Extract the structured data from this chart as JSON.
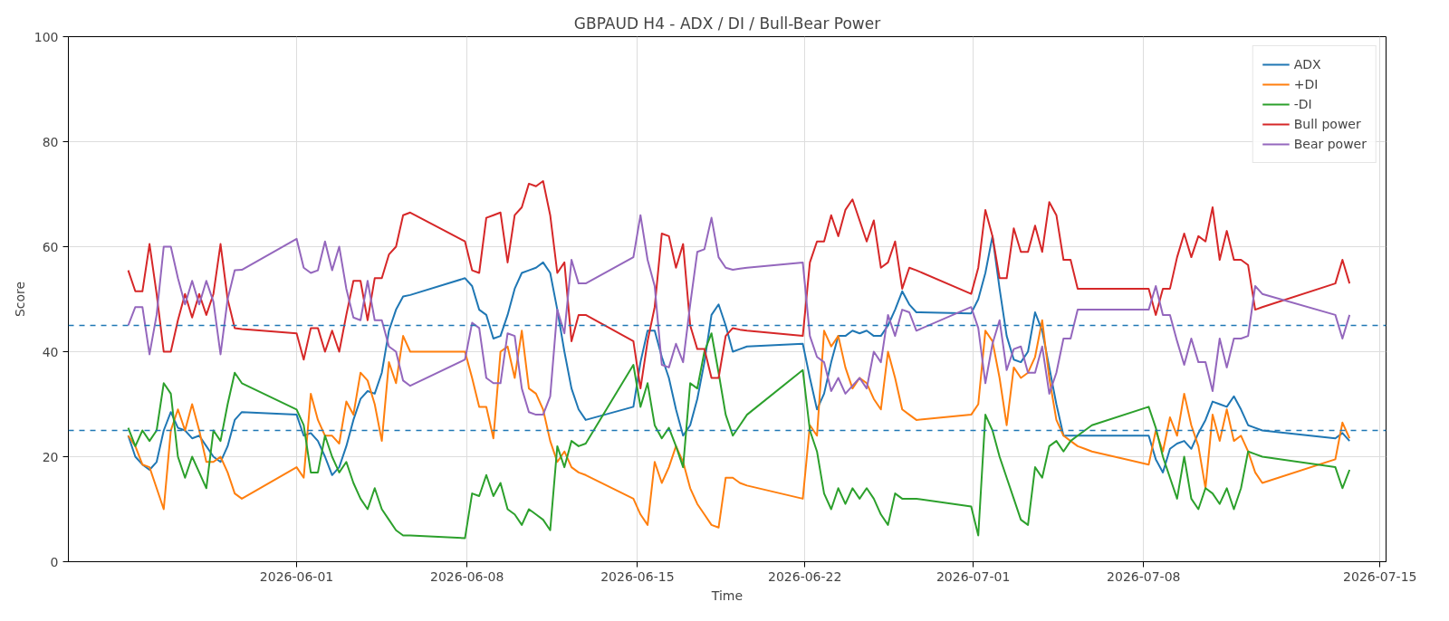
{
  "chart_data": {
    "type": "line",
    "title": "GBPAUD H4 - ADX / DI / Bull-Bear Power",
    "xlabel": "Time",
    "ylabel": "Score",
    "x": [
      "2026-05-25T02:00",
      "2026-05-25T09:00",
      "2026-05-25T16:00",
      "2026-05-25T23:00",
      "2026-05-26T06:00",
      "2026-05-26T13:00",
      "2026-05-26T20:00",
      "2026-05-27T03:00",
      "2026-05-27T10:00",
      "2026-05-27T17:00",
      "2026-05-28T00:00",
      "2026-05-28T07:00",
      "2026-05-28T14:00",
      "2026-05-28T21:00",
      "2026-05-29T04:00",
      "2026-05-29T11:00",
      "2026-05-29T18:00",
      "2026-06-01T00:00",
      "2026-06-01T07:00",
      "2026-06-01T14:00",
      "2026-06-01T21:00",
      "2026-06-02T04:00",
      "2026-06-02T11:00",
      "2026-06-02T18:00",
      "2026-06-03T01:00",
      "2026-06-03T08:00",
      "2026-06-03T15:00",
      "2026-06-03T22:00",
      "2026-06-04T05:00",
      "2026-06-04T12:00",
      "2026-06-04T19:00",
      "2026-06-05T02:00",
      "2026-06-05T09:00",
      "2026-06-05T16:00",
      "2026-06-07T22:00",
      "2026-06-08T05:00",
      "2026-06-08T12:00",
      "2026-06-08T19:00",
      "2026-06-09T02:00",
      "2026-06-09T09:00",
      "2026-06-09T16:00",
      "2026-06-09T23:00",
      "2026-06-10T06:00",
      "2026-06-10T13:00",
      "2026-06-10T20:00",
      "2026-06-11T03:00",
      "2026-06-11T10:00",
      "2026-06-11T17:00",
      "2026-06-12T00:00",
      "2026-06-12T07:00",
      "2026-06-12T14:00",
      "2026-06-12T21:00",
      "2026-06-14T20:00",
      "2026-06-15T03:00",
      "2026-06-15T10:00",
      "2026-06-15T17:00",
      "2026-06-16T00:00",
      "2026-06-16T07:00",
      "2026-06-16T14:00",
      "2026-06-16T21:00",
      "2026-06-17T04:00",
      "2026-06-17T11:00",
      "2026-06-17T18:00",
      "2026-06-18T01:00",
      "2026-06-18T08:00",
      "2026-06-18T15:00",
      "2026-06-18T22:00",
      "2026-06-19T05:00",
      "2026-06-19T12:00",
      "2026-06-21T19:00",
      "2026-06-22T02:00",
      "2026-06-22T09:00",
      "2026-06-22T16:00",
      "2026-06-22T23:00",
      "2026-06-23T06:00",
      "2026-06-23T13:00",
      "2026-06-23T20:00",
      "2026-06-24T03:00",
      "2026-06-24T10:00",
      "2026-06-24T17:00",
      "2026-06-25T00:00",
      "2026-06-25T07:00",
      "2026-06-25T14:00",
      "2026-06-25T21:00",
      "2026-06-26T04:00",
      "2026-06-26T11:00",
      "2026-06-28T17:00",
      "2026-06-29T00:00",
      "2026-06-29T07:00",
      "2026-06-29T14:00",
      "2026-06-29T21:00",
      "2026-06-30T04:00",
      "2026-06-30T11:00",
      "2026-06-30T18:00",
      "2026-07-01T01:00",
      "2026-07-01T08:00",
      "2026-07-01T15:00",
      "2026-07-01T22:00",
      "2026-07-02T05:00",
      "2026-07-02T12:00",
      "2026-07-02T19:00",
      "2026-07-03T02:00",
      "2026-07-03T09:00",
      "2026-07-03T16:00",
      "2026-07-06T00:00",
      "2026-07-06T07:00",
      "2026-07-06T14:00",
      "2026-07-06T21:00",
      "2026-07-07T04:00",
      "2026-07-07T11:00",
      "2026-07-07T18:00",
      "2026-07-08T01:00",
      "2026-07-08T08:00",
      "2026-07-08T15:00",
      "2026-07-08T22:00",
      "2026-07-09T05:00",
      "2026-07-09T12:00",
      "2026-07-09T19:00",
      "2026-07-10T02:00",
      "2026-07-10T09:00",
      "2026-07-10T16:00",
      "2026-07-13T16:00",
      "2026-07-13T23:00",
      "2026-07-14T06:00"
    ],
    "series": [
      {
        "name": "ADX",
        "color": "#1f77b4",
        "values": [
          24,
          20,
          18.5,
          17.5,
          19,
          25,
          28.5,
          25.5,
          25,
          23.5,
          24,
          22,
          20,
          19,
          22,
          27,
          28.5,
          28,
          24,
          24.5,
          23,
          20,
          16.5,
          18,
          22,
          27,
          31,
          32.5,
          32,
          36,
          44,
          48,
          50.5,
          50.8,
          54,
          52.5,
          48,
          47,
          42.5,
          43,
          47,
          52,
          55,
          55.5,
          56,
          57,
          55,
          48,
          40,
          33,
          29,
          27,
          29.5,
          38,
          44,
          44,
          39,
          35,
          29,
          24,
          26,
          31,
          38,
          47,
          49,
          45,
          40,
          40.5,
          41,
          41.5,
          35,
          29,
          32,
          38,
          43,
          43,
          44,
          43.5,
          44,
          43,
          43,
          45,
          48,
          51.5,
          49,
          47.5,
          47.3,
          50,
          55,
          62,
          52,
          43,
          38.5,
          38,
          40,
          47.5,
          44,
          37,
          30,
          24,
          24,
          24,
          24,
          24,
          24,
          19.5,
          17,
          21.5,
          22.5,
          23,
          21.5,
          24.5,
          27,
          30.5,
          30,
          29.5,
          31.5,
          29,
          26,
          25.5,
          25,
          23.5,
          24.5,
          23
        ]
      },
      {
        "name": "+DI",
        "color": "#ff7f0e",
        "values": [
          24,
          22,
          18.5,
          18,
          14,
          10,
          25,
          29,
          25,
          30,
          25,
          19,
          19,
          20,
          17,
          13,
          12,
          18,
          16,
          32,
          27,
          24,
          24,
          22.5,
          30.5,
          28,
          36,
          34.5,
          30,
          23,
          38,
          34,
          43,
          40,
          40,
          35,
          29.5,
          29.5,
          23.5,
          40,
          41,
          35,
          44,
          33,
          32,
          29,
          23,
          19,
          21,
          18,
          17,
          16.5,
          12,
          9,
          7,
          19,
          15,
          18,
          22,
          19,
          14,
          11,
          9,
          7,
          6.5,
          16,
          16,
          15,
          14.5,
          12,
          26,
          24,
          44,
          41,
          43,
          37,
          33,
          35,
          34,
          31,
          29,
          40,
          35,
          29,
          28,
          27,
          28,
          30,
          44,
          42,
          35,
          26,
          37,
          35,
          36,
          39,
          46,
          35,
          27,
          24,
          23,
          22,
          21.5,
          21,
          18.5,
          25,
          21,
          27.5,
          24,
          32,
          26,
          22,
          14,
          28,
          23,
          29,
          23,
          24,
          21,
          17,
          15,
          19.5,
          26.5,
          23.5
        ]
      },
      {
        "name": "-DI",
        "color": "#2ca02c",
        "values": [
          25.5,
          22,
          25,
          23,
          25,
          34,
          32,
          20,
          16,
          20,
          17,
          14,
          25,
          23,
          30,
          36,
          34,
          29,
          26,
          17,
          17,
          24,
          20,
          17,
          19,
          15,
          12,
          10,
          14,
          10,
          8,
          6,
          5,
          5,
          4.5,
          13,
          12.5,
          16.5,
          12.5,
          15,
          10,
          9,
          7,
          10,
          9,
          8,
          6,
          22,
          18,
          23,
          22,
          22.5,
          37.5,
          29.5,
          34,
          26,
          23.5,
          25.5,
          22,
          18,
          34,
          33,
          40,
          43.5,
          36,
          28,
          24,
          26,
          28,
          36.5,
          25,
          21,
          13,
          10,
          14,
          11,
          14,
          12,
          14,
          12,
          9,
          7,
          13,
          12,
          12,
          12,
          10.5,
          5,
          28,
          25,
          20,
          16,
          12,
          8,
          7,
          18,
          16,
          22,
          23,
          21,
          23,
          24,
          25,
          26,
          29.5,
          25.5,
          20,
          16,
          12,
          20,
          12,
          10,
          14,
          13,
          11,
          14,
          10,
          14,
          21,
          20.5,
          20,
          18,
          14,
          17.5
        ]
      },
      {
        "name": "Bull power",
        "color": "#d62728",
        "values": [
          55.5,
          51.5,
          51.5,
          60.5,
          51,
          40,
          40,
          46,
          51,
          46.5,
          51,
          47,
          51,
          60.5,
          50,
          44.5,
          44.3,
          43.5,
          38.5,
          44.5,
          44.5,
          40,
          44,
          40,
          47,
          53.5,
          53.5,
          46,
          54,
          54,
          58.5,
          60,
          66,
          66.5,
          61,
          55.5,
          55,
          65.5,
          66,
          66.5,
          57,
          66,
          67.5,
          72,
          71.5,
          72.5,
          66,
          55,
          57,
          42,
          47,
          47,
          42,
          33,
          42,
          48.5,
          62.5,
          62,
          56,
          60.5,
          45,
          40.5,
          40.5,
          35,
          35,
          43,
          44.5,
          44.2,
          44,
          43,
          57,
          61,
          61,
          66,
          62,
          67,
          69,
          65,
          61,
          65,
          56,
          57,
          61,
          52,
          56,
          55.5,
          51,
          56,
          67,
          62,
          54,
          54,
          63.5,
          59,
          59,
          64,
          59,
          68.5,
          66,
          57.5,
          57.5,
          52,
          52,
          52,
          52,
          47,
          52,
          52,
          58,
          62.5,
          58,
          62,
          61,
          67.5,
          57.5,
          63,
          57.5,
          57.5,
          56.5,
          48,
          48.5,
          53,
          57.5,
          53
        ]
      },
      {
        "name": "Bear power",
        "color": "#9467bd",
        "values": [
          45,
          48.5,
          48.5,
          39.5,
          47,
          60,
          60,
          54,
          49,
          53.5,
          49,
          53.5,
          49.5,
          39.5,
          50,
          55.5,
          55.6,
          61.5,
          56,
          55,
          55.5,
          61,
          55.5,
          60,
          52,
          46.5,
          46,
          53.5,
          46,
          46,
          41,
          40,
          34.5,
          33.5,
          38.5,
          45.5,
          44.5,
          35,
          34,
          34,
          43.5,
          43,
          33,
          28.5,
          28,
          28,
          31.5,
          48,
          43.5,
          57.5,
          53,
          53,
          58,
          66,
          57.5,
          52.5,
          37.5,
          37,
          41.5,
          38,
          49,
          59,
          59.5,
          65.5,
          58,
          56,
          55.6,
          55.8,
          56,
          57,
          43,
          39,
          38,
          32.5,
          35,
          32,
          33.5,
          35,
          33,
          40,
          38,
          47,
          43,
          48,
          47.5,
          44,
          48.5,
          44.5,
          34,
          41.5,
          46,
          36.5,
          40.5,
          41,
          36,
          36,
          41,
          32,
          36,
          42.5,
          42.5,
          48,
          48,
          48,
          48,
          52.5,
          47,
          47,
          42,
          37.5,
          42.5,
          38,
          38,
          32.5,
          42.5,
          37,
          42.5,
          42.5,
          43,
          52.5,
          51,
          47,
          42.5,
          47
        ]
      }
    ],
    "xlim": [
      "2026-05-22T15:00",
      "2026-07-15T18:00"
    ],
    "xticks": [
      {
        "value": "2026-06-01T00:00",
        "label": "2026-06-01"
      },
      {
        "value": "2026-06-08T00:00",
        "label": "2026-06-08"
      },
      {
        "value": "2026-06-15T00:00",
        "label": "2026-06-15"
      },
      {
        "value": "2026-06-21T21:00",
        "label": "2026-06-22"
      },
      {
        "value": "2026-06-28T19:00",
        "label": "2026-07-01"
      },
      {
        "value": "2026-07-05T19:00",
        "label": "2026-07-08"
      },
      {
        "value": "2026-07-15T12:00",
        "label": "2026-07-15"
      }
    ],
    "ylim": [
      0,
      100
    ],
    "yticks": [
      0,
      20,
      40,
      60,
      80,
      100
    ],
    "ref_lines": [
      {
        "axis": "y",
        "value": 45,
        "color": "#1f77b4",
        "line_style": "dashed"
      },
      {
        "axis": "y",
        "value": 25,
        "color": "#1f77b4",
        "line_style": "dashed"
      }
    ],
    "grid": true,
    "legend": "top right",
    "line_style": "solid"
  }
}
